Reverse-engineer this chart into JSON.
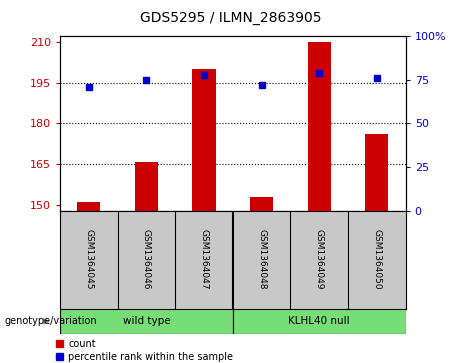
{
  "title": "GDS5295 / ILMN_2863905",
  "samples": [
    "GSM1364045",
    "GSM1364046",
    "GSM1364047",
    "GSM1364048",
    "GSM1364049",
    "GSM1364050"
  ],
  "counts": [
    151,
    166,
    200,
    153,
    210,
    176
  ],
  "percentile_ranks": [
    71,
    75,
    78,
    72,
    79,
    76
  ],
  "bar_color": "#CC0000",
  "dot_color": "#0000CC",
  "ylim_left": [
    148,
    212
  ],
  "ylim_right": [
    0,
    100
  ],
  "yticks_left": [
    150,
    165,
    180,
    195,
    210
  ],
  "yticks_right": [
    0,
    25,
    50,
    75,
    100
  ],
  "ytick_labels_right": [
    "0",
    "25",
    "50",
    "75",
    "100%"
  ],
  "hlines": [
    165,
    180,
    195
  ],
  "bg_color": "#C8C8C8",
  "group_label_wt": "wild type",
  "group_label_klhl": "KLHL40 null",
  "legend_count_label": "count",
  "legend_pct_label": "percentile rank within the sample",
  "genotype_label": "genotype/variation",
  "title_fontsize": 10,
  "axis_fontsize": 8,
  "label_fontsize": 7.5,
  "sample_fontsize": 6.5,
  "green_color": "#77DD77"
}
